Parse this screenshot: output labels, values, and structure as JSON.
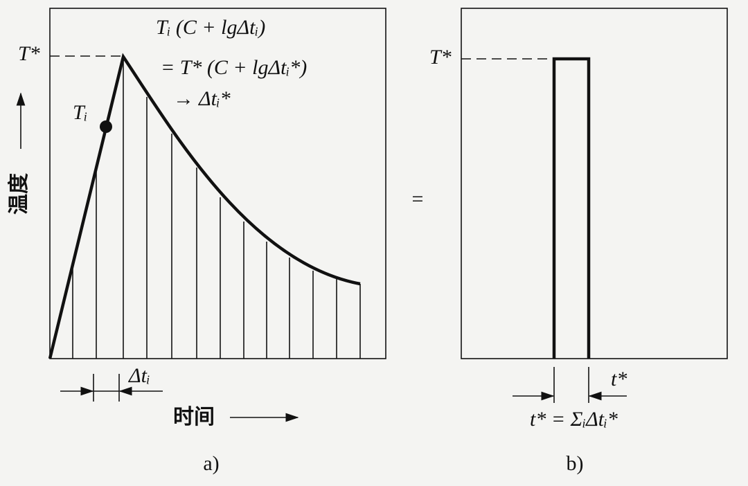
{
  "panel_a": {
    "peak_label": "T*",
    "formula_line1": "Tᵢ (C + lgΔtᵢ)",
    "formula_line2": "= T* (C + lgΔtᵢ*)",
    "formula_line3": "→ Δtᵢ*",
    "point_label": "Tᵢ",
    "y_axis_label": "温度",
    "interval_label": "Δtᵢ",
    "x_axis_label": "时间",
    "caption": "a)"
  },
  "equals": "=",
  "panel_b": {
    "peak_label": "T*",
    "width_label": "t*",
    "formula": "t* = ΣᵢΔtᵢ*",
    "caption": "b)"
  }
}
